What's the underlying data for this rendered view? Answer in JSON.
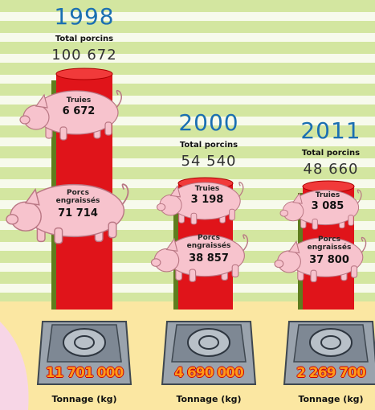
{
  "years": [
    {
      "year": "1998",
      "total_label": "Total porcins",
      "total": "100 672",
      "sows_label": "Truies",
      "sows": "6 672",
      "fattened_label": "Porcs engraissés",
      "fattened": "71 714",
      "tonnage": "11 701 000",
      "tonnage_label": "Tonnage (kg)"
    },
    {
      "year": "2000",
      "total_label": "Total porcins",
      "total": "54 540",
      "sows_label": "Truies",
      "sows": "3 198",
      "fattened_label": "Porcs engraissés",
      "fattened": "38 857",
      "tonnage": "4 690 000",
      "tonnage_label": "Tonnage (kg)"
    },
    {
      "year": "2011",
      "total_label": "Total porcins",
      "total": "48 660",
      "sows_label": "Truies",
      "sows": "3 085",
      "fattened_label": "Porcs engraissés",
      "fattened": "37 800",
      "tonnage": "2 269 700",
      "tonnage_label": "Tonnage (kg)"
    }
  ]
}
